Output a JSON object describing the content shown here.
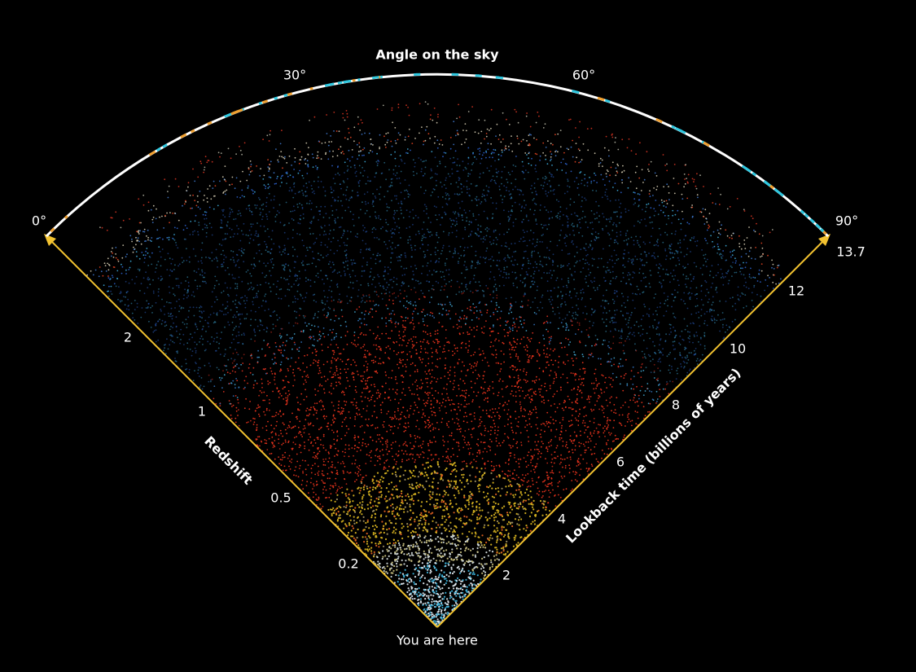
{
  "title": "Angle on the sky",
  "angle_labels": [
    "0°",
    "30°",
    "60°",
    "90°"
  ],
  "redshift": {
    "title": "Redshift",
    "ticks": [
      "2",
      "1",
      "0.5",
      "0.2"
    ]
  },
  "lookback": {
    "title": "Lookback time (billions of years)",
    "ticks": [
      "13.7",
      "12",
      "10",
      "8",
      "6",
      "4",
      "2"
    ]
  },
  "origin_label": "You are here"
}
